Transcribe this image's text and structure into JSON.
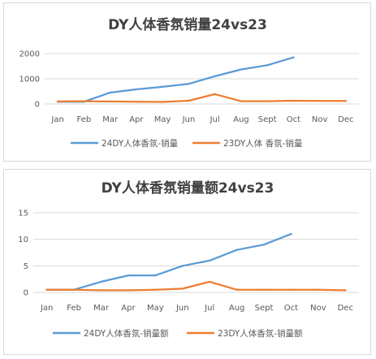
{
  "chart_data": [
    {
      "type": "line",
      "title": "DY人体香氛销量24vs23",
      "categories": [
        "Jan",
        "Feb",
        "Mar",
        "Apr",
        "May",
        "Jun",
        "Jul",
        "Aug",
        "Sept",
        "Oct",
        "Nov",
        "Dec"
      ],
      "ylim": [
        0,
        2000
      ],
      "yticks": [
        "0",
        "1000",
        "2000"
      ],
      "ytick_values": [
        0,
        1000,
        2000
      ],
      "grid": true,
      "legend": "bottom",
      "series": [
        {
          "name": "24DY人体香氛-销量",
          "color": "#5b9bd5",
          "values": [
            90,
            90,
            450,
            580,
            680,
            800,
            1100,
            1370,
            1540,
            1850,
            null,
            null
          ]
        },
        {
          "name": "23DY人体 香氛-销量",
          "color": "#ed7d31",
          "values": [
            100,
            110,
            100,
            90,
            80,
            130,
            390,
            110,
            110,
            130,
            120,
            120
          ]
        }
      ]
    },
    {
      "type": "line",
      "title": "DY人体香氛销量额24vs23",
      "categories": [
        "Jan",
        "Feb",
        "Mar",
        "Apr",
        "May",
        "Jun",
        "Jul",
        "Aug",
        "Sept",
        "Oct",
        "Nov",
        "Dec"
      ],
      "ylim": [
        0,
        15
      ],
      "yticks": [
        "0",
        "5",
        "10",
        "15"
      ],
      "ytick_values": [
        0,
        5,
        10,
        15
      ],
      "grid": true,
      "legend": "bottom",
      "series": [
        {
          "name": "24DY人体香氛-销量额",
          "color": "#5b9bd5",
          "values": [
            0.5,
            0.5,
            2.0,
            3.2,
            3.2,
            5.0,
            6.0,
            8.0,
            9.0,
            11.0,
            null,
            null
          ]
        },
        {
          "name": "23DY人体香氛-销量额",
          "color": "#ed7d31",
          "values": [
            0.5,
            0.5,
            0.4,
            0.4,
            0.5,
            0.7,
            2.0,
            0.5,
            0.5,
            0.5,
            0.5,
            0.4
          ]
        }
      ]
    }
  ]
}
